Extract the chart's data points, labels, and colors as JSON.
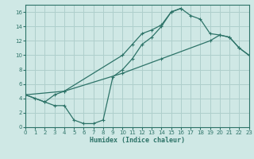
{
  "xlabel": "Humidex (Indice chaleur)",
  "xlim": [
    0,
    23
  ],
  "ylim": [
    0,
    17
  ],
  "xticks": [
    0,
    1,
    2,
    3,
    4,
    5,
    6,
    7,
    8,
    9,
    10,
    11,
    12,
    13,
    14,
    15,
    16,
    17,
    18,
    19,
    20,
    21,
    22,
    23
  ],
  "yticks": [
    0,
    2,
    4,
    6,
    8,
    10,
    12,
    14,
    16
  ],
  "bg_color": "#cfe8e5",
  "line_color": "#2d7368",
  "grid_color": "#aecfcc",
  "line1_x": [
    0,
    1,
    2,
    3,
    4,
    10,
    11,
    12,
    13,
    14,
    15,
    16,
    17,
    18,
    19,
    20,
    21,
    22,
    23
  ],
  "line1_y": [
    4.5,
    4.0,
    3.5,
    4.5,
    5.0,
    10.0,
    11.5,
    13.0,
    13.5,
    14.2,
    16.0,
    16.5,
    15.5,
    15.0,
    13.0,
    12.8,
    12.5,
    11.0,
    10.0
  ],
  "line2_x": [
    0,
    2,
    3,
    4,
    5,
    6,
    7,
    8,
    9,
    10,
    11,
    12,
    13,
    14,
    15,
    16
  ],
  "line2_y": [
    4.5,
    3.5,
    3.0,
    3.0,
    1.0,
    0.5,
    0.5,
    1.0,
    7.0,
    8.0,
    9.5,
    11.5,
    12.5,
    14.0,
    16.0,
    16.5
  ],
  "line3_x": [
    0,
    4,
    10,
    14,
    19,
    20,
    21,
    22,
    23
  ],
  "line3_y": [
    4.5,
    5.0,
    7.5,
    9.5,
    12.0,
    12.8,
    12.5,
    11.0,
    10.0
  ]
}
